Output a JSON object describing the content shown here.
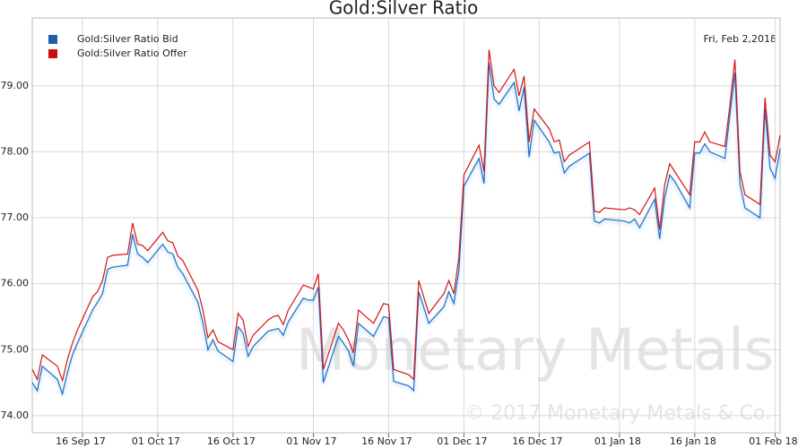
{
  "chart_data": {
    "type": "line",
    "title": "Gold:Silver Ratio",
    "annotation": "Fri, Feb 2,2018",
    "watermark": "Monetary Metals",
    "copyright": "© 2017 Monetary Metals & Co.",
    "x": [
      "2017-09-06",
      "2017-09-07",
      "2017-09-08",
      "2017-09-11",
      "2017-09-12",
      "2017-09-13",
      "2017-09-14",
      "2017-09-15",
      "2017-09-18",
      "2017-09-19",
      "2017-09-20",
      "2017-09-21",
      "2017-09-22",
      "2017-09-25",
      "2017-09-26",
      "2017-09-27",
      "2017-09-28",
      "2017-09-29",
      "2017-10-02",
      "2017-10-03",
      "2017-10-04",
      "2017-10-05",
      "2017-10-06",
      "2017-10-09",
      "2017-10-10",
      "2017-10-11",
      "2017-10-12",
      "2017-10-13",
      "2017-10-16",
      "2017-10-17",
      "2017-10-18",
      "2017-10-19",
      "2017-10-20",
      "2017-10-23",
      "2017-10-24",
      "2017-10-25",
      "2017-10-26",
      "2017-10-27",
      "2017-10-30",
      "2017-10-31",
      "2017-11-01",
      "2017-11-02",
      "2017-11-03",
      "2017-11-06",
      "2017-11-07",
      "2017-11-08",
      "2017-11-09",
      "2017-11-10",
      "2017-11-13",
      "2017-11-14",
      "2017-11-15",
      "2017-11-16",
      "2017-11-17",
      "2017-11-20",
      "2017-11-21",
      "2017-11-22",
      "2017-11-24",
      "2017-11-27",
      "2017-11-28",
      "2017-11-29",
      "2017-11-30",
      "2017-12-01",
      "2017-12-04",
      "2017-12-05",
      "2017-12-06",
      "2017-12-07",
      "2017-12-08",
      "2017-12-11",
      "2017-12-12",
      "2017-12-13",
      "2017-12-14",
      "2017-12-15",
      "2017-12-18",
      "2017-12-19",
      "2017-12-20",
      "2017-12-21",
      "2017-12-22",
      "2017-12-26",
      "2017-12-27",
      "2017-12-28",
      "2017-12-29",
      "2018-01-02",
      "2018-01-03",
      "2018-01-04",
      "2018-01-05",
      "2018-01-08",
      "2018-01-09",
      "2018-01-10",
      "2018-01-11",
      "2018-01-12",
      "2018-01-15",
      "2018-01-16",
      "2018-01-17",
      "2018-01-18",
      "2018-01-19",
      "2018-01-22",
      "2018-01-23",
      "2018-01-24",
      "2018-01-25",
      "2018-01-26",
      "2018-01-29",
      "2018-01-30",
      "2018-01-31",
      "2018-02-01",
      "2018-02-02"
    ],
    "series": [
      {
        "name": "Gold:Silver Ratio Bid",
        "color": "#1a6fc4",
        "legend_color": "#1f5fa8",
        "values": [
          74.5,
          74.38,
          74.75,
          74.55,
          74.33,
          74.65,
          74.92,
          75.1,
          75.6,
          75.72,
          75.85,
          76.22,
          76.25,
          76.28,
          76.75,
          76.45,
          76.4,
          76.32,
          76.6,
          76.48,
          76.45,
          76.25,
          76.15,
          75.72,
          75.4,
          75.0,
          75.15,
          74.98,
          74.82,
          75.35,
          75.25,
          74.9,
          75.05,
          75.28,
          75.3,
          75.32,
          75.22,
          75.42,
          75.78,
          75.75,
          75.75,
          75.95,
          74.5,
          75.2,
          75.1,
          74.98,
          74.75,
          75.4,
          75.2,
          75.35,
          75.5,
          75.48,
          74.52,
          74.45,
          74.38,
          75.88,
          75.4,
          75.65,
          75.88,
          75.7,
          76.2,
          77.48,
          77.9,
          77.52,
          79.35,
          78.8,
          78.72,
          79.05,
          78.62,
          78.98,
          77.92,
          78.48,
          78.15,
          77.98,
          78.0,
          77.68,
          77.78,
          77.98,
          76.95,
          76.92,
          76.98,
          76.95,
          76.92,
          76.98,
          76.85,
          77.28,
          76.68,
          77.3,
          77.65,
          77.55,
          77.15,
          77.98,
          77.98,
          78.12,
          78.0,
          77.9,
          78.55,
          79.2,
          77.52,
          77.15,
          77.0,
          78.65,
          77.75,
          77.6,
          78.05
        ]
      },
      {
        "name": "Gold:Silver Ratio Offer",
        "color": "#d41414",
        "legend_color": "#c81010",
        "values": [
          74.7,
          74.55,
          74.92,
          74.75,
          74.53,
          74.85,
          75.1,
          75.3,
          75.8,
          75.88,
          76.05,
          76.4,
          76.43,
          76.45,
          76.92,
          76.6,
          76.58,
          76.5,
          76.78,
          76.65,
          76.62,
          76.42,
          76.35,
          75.9,
          75.6,
          75.18,
          75.3,
          75.12,
          75.0,
          75.55,
          75.45,
          75.05,
          75.22,
          75.45,
          75.5,
          75.52,
          75.38,
          75.6,
          75.98,
          75.95,
          75.92,
          76.15,
          74.7,
          75.4,
          75.3,
          75.15,
          74.95,
          75.6,
          75.4,
          75.55,
          75.7,
          75.68,
          74.7,
          74.62,
          74.55,
          76.05,
          75.55,
          75.85,
          76.05,
          75.85,
          76.4,
          77.65,
          78.1,
          77.7,
          79.55,
          79.0,
          78.9,
          79.25,
          78.85,
          79.15,
          78.15,
          78.65,
          78.35,
          78.15,
          78.18,
          77.85,
          77.95,
          78.15,
          77.1,
          77.08,
          77.15,
          77.12,
          77.15,
          77.12,
          77.05,
          77.45,
          76.82,
          77.5,
          77.82,
          77.7,
          77.35,
          78.15,
          78.15,
          78.3,
          78.15,
          78.08,
          78.7,
          79.4,
          77.7,
          77.35,
          77.2,
          78.82,
          77.95,
          77.85,
          78.25
        ]
      }
    ],
    "xlim": [
      "2017-09-06",
      "2018-02-02"
    ],
    "xticks": [
      {
        "value": "2017-09-16",
        "label": "16 Sep 17"
      },
      {
        "value": "2017-10-01",
        "label": "01 Oct 17"
      },
      {
        "value": "2017-10-16",
        "label": "16 Oct 17"
      },
      {
        "value": "2017-11-01",
        "label": "01 Nov 17"
      },
      {
        "value": "2017-11-16",
        "label": "16 Nov 17"
      },
      {
        "value": "2017-12-01",
        "label": "01 Dec 17"
      },
      {
        "value": "2017-12-16",
        "label": "16 Dec 17"
      },
      {
        "value": "2018-01-01",
        "label": "01 Jan 18"
      },
      {
        "value": "2018-01-16",
        "label": "16 Jan 18"
      },
      {
        "value": "2018-02-01",
        "label": "01 Feb 18"
      }
    ],
    "ylim": [
      73.74,
      80.03
    ],
    "yticks": [
      {
        "value": 74,
        "label": "74.00"
      },
      {
        "value": 75,
        "label": "75.00"
      },
      {
        "value": 76,
        "label": "76.00"
      },
      {
        "value": 77,
        "label": "77.00"
      },
      {
        "value": 78,
        "label": "78.00"
      },
      {
        "value": 79,
        "label": "79.00"
      }
    ],
    "grid": true,
    "legend": "top-left"
  }
}
